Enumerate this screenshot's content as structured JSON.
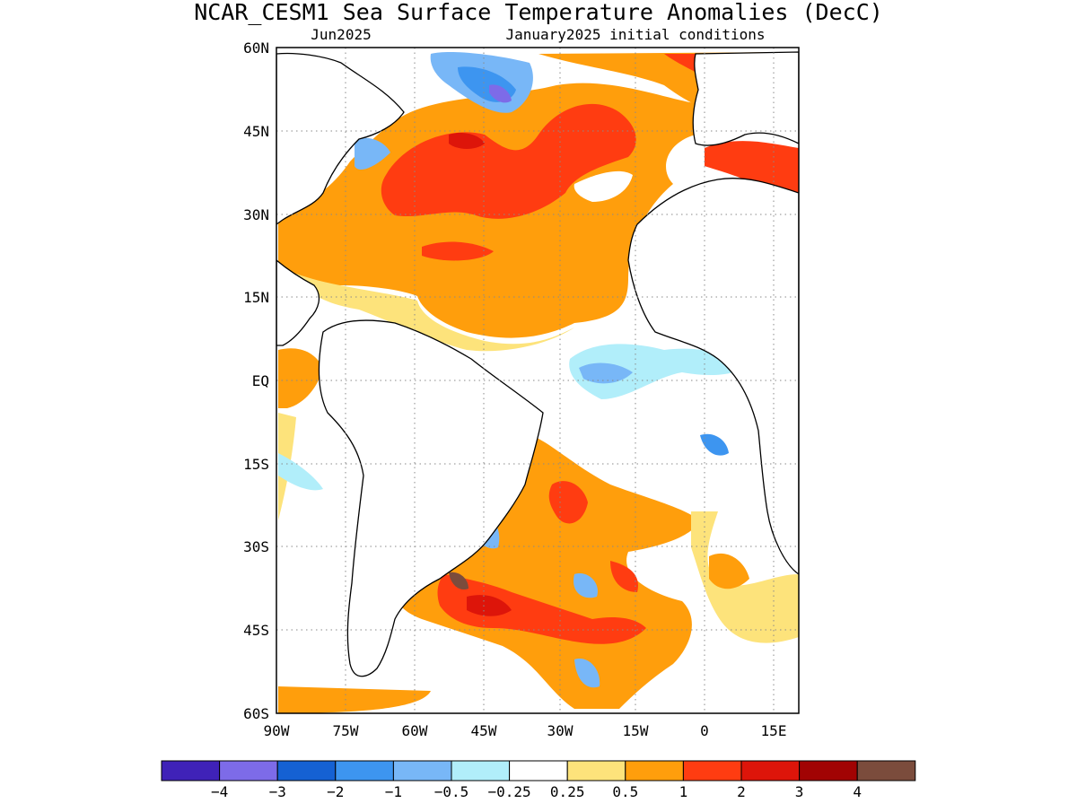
{
  "title": "NCAR_CESM1 Sea Surface Temperature Anomalies (DecC)",
  "subtitle_left": "Jun2025",
  "subtitle_right": "January2025 initial conditions",
  "lat_labels": [
    "60N",
    "45N",
    "30N",
    "15N",
    "EQ",
    "15S",
    "30S",
    "45S",
    "60S"
  ],
  "lon_labels": [
    "90W",
    "75W",
    "60W",
    "45W",
    "30W",
    "15W",
    "0",
    "15E"
  ],
  "colorbar": {
    "colors": [
      "#3f22b8",
      "#7d6be8",
      "#1561d3",
      "#3d95f0",
      "#78b7f7",
      "#b1eefa",
      "#ffffff",
      "#fde37b",
      "#ff9e0c",
      "#ff3c11",
      "#dd150a",
      "#a10303",
      "#7b4c3c"
    ],
    "labels": [
      "−4",
      "−3",
      "−2",
      "−1",
      "−0.5",
      "−0.25",
      "0.25",
      "0.5",
      "1",
      "2",
      "3",
      "4"
    ]
  }
}
